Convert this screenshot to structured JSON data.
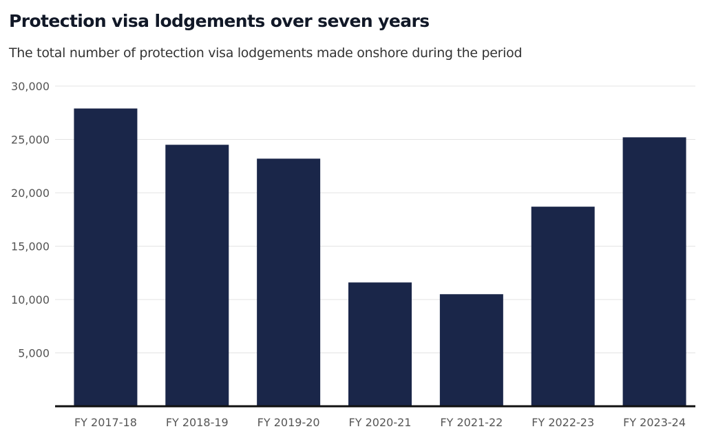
{
  "chart_data": {
    "type": "bar",
    "title": "Protection visa lodgements over seven years",
    "subtitle": "The total number of protection visa lodgements made onshore during the period",
    "xlabel": "",
    "ylabel": "",
    "categories": [
      "FY 2017-18",
      "FY 2018-19",
      "FY 2019-20",
      "FY 2020-21",
      "FY 2021-22",
      "FY 2022-23",
      "FY 2023-24"
    ],
    "values": [
      27900,
      24500,
      23200,
      11600,
      10500,
      18700,
      25200
    ],
    "ylim": [
      0,
      30000
    ],
    "yticks": [
      5000,
      10000,
      15000,
      20000,
      25000,
      30000
    ],
    "ytick_labels": [
      "5,000",
      "10,000",
      "15,000",
      "20,000",
      "25,000",
      "30,000"
    ],
    "grid": true,
    "legend": "none",
    "colors": {
      "bar": "#1a2649",
      "grid": "#e3e3e3",
      "axis": "#111111"
    }
  }
}
